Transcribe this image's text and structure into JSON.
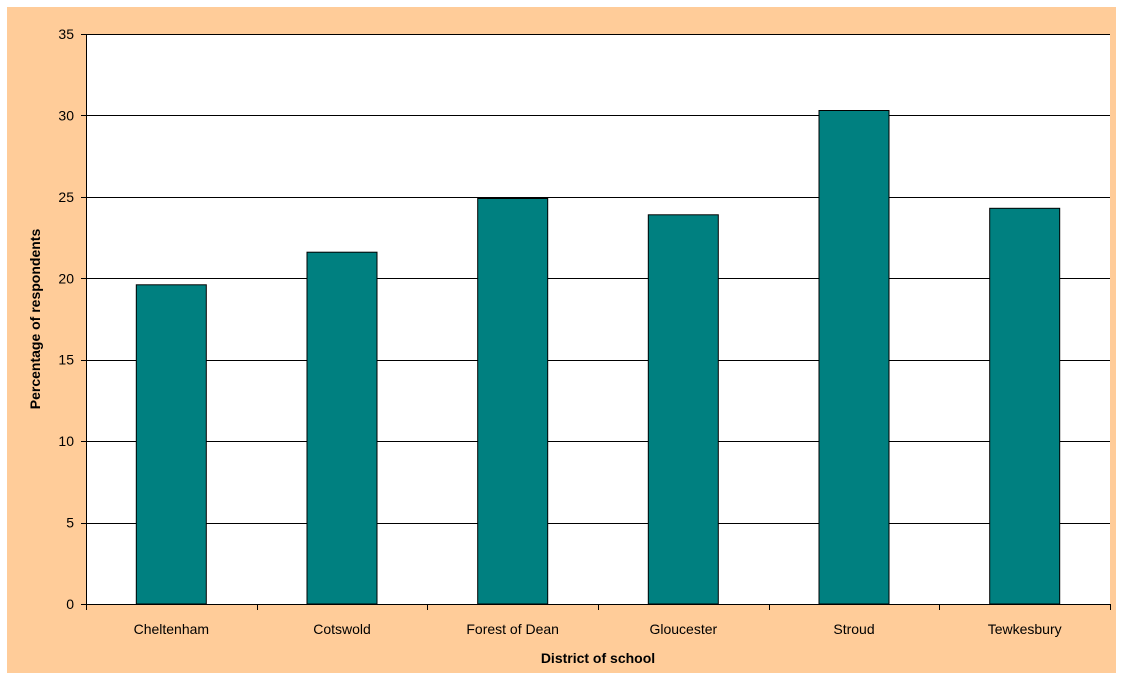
{
  "chart_data": {
    "type": "bar",
    "title": "",
    "xlabel": "District of school",
    "ylabel": "Percentage of respondents",
    "categories": [
      "Cheltenham",
      "Cotswold",
      "Forest of Dean",
      "Gloucester",
      "Stroud",
      "Tewkesbury"
    ],
    "values": [
      19.6,
      21.6,
      24.9,
      23.9,
      30.3,
      24.3
    ],
    "ylim": [
      0,
      35
    ],
    "yticks": [
      0,
      5,
      10,
      15,
      20,
      25,
      30,
      35
    ],
    "grid": true,
    "legend": "none",
    "colors": {
      "bar": "#008080",
      "bar_border": "#000000",
      "plot_background": "#FFFFFF",
      "chart_background": "#FFCC99",
      "gridline": "#000000"
    }
  }
}
